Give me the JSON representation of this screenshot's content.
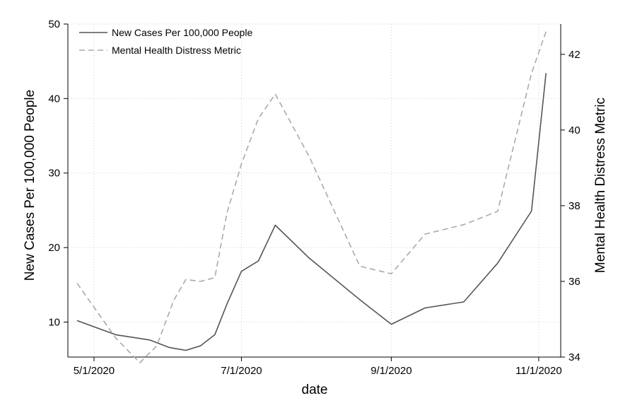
{
  "chart_data": {
    "type": "line",
    "xlabel": "date",
    "ylabel_left": "New Cases Per 100,000 People",
    "ylabel_right": "Mental Health Distress Metric",
    "x_ticks": [
      "5/1/2020",
      "7/1/2020",
      "9/1/2020",
      "11/1/2020"
    ],
    "xlim": [
      "2020-04-24",
      "2020-11-06"
    ],
    "ylim_left": [
      5.3,
      50
    ],
    "yticks_left": [
      10,
      20,
      30,
      40,
      50
    ],
    "ylim_right": [
      34,
      42.8
    ],
    "yticks_right": [
      34,
      36,
      38,
      40,
      42
    ],
    "grid": "dotted",
    "legend_position": "top-left",
    "series": [
      {
        "name": "New Cases Per 100,000 People",
        "axis": "left",
        "style": "solid",
        "color": "#555555",
        "x": [
          "2020-04-24",
          "2020-05-10",
          "2020-05-24",
          "2020-06-01",
          "2020-06-08",
          "2020-06-14",
          "2020-06-20",
          "2020-06-25",
          "2020-07-01",
          "2020-07-08",
          "2020-07-15",
          "2020-07-29",
          "2020-08-19",
          "2020-09-01",
          "2020-09-15",
          "2020-10-01",
          "2020-10-15",
          "2020-10-29",
          "2020-11-04"
        ],
        "y": [
          10.2,
          8.3,
          7.6,
          6.6,
          6.2,
          6.8,
          8.3,
          12.4,
          16.8,
          18.2,
          23.0,
          18.6,
          13.0,
          9.7,
          11.9,
          12.7,
          17.9,
          24.9,
          43.4
        ]
      },
      {
        "name": "Mental Health Distress Metric",
        "axis": "right",
        "style": "dashed",
        "color": "#aaaaaa",
        "x": [
          "2020-04-24",
          "2020-05-10",
          "2020-05-20",
          "2020-05-27",
          "2020-06-03",
          "2020-06-08",
          "2020-06-14",
          "2020-06-20",
          "2020-06-25",
          "2020-07-01",
          "2020-07-08",
          "2020-07-15",
          "2020-07-29",
          "2020-08-19",
          "2020-09-01",
          "2020-09-15",
          "2020-10-01",
          "2020-10-15",
          "2020-10-29",
          "2020-11-04"
        ],
        "y": [
          35.95,
          34.5,
          33.85,
          34.3,
          35.5,
          36.05,
          36.0,
          36.1,
          37.8,
          39.1,
          40.3,
          40.95,
          39.3,
          36.4,
          36.2,
          37.25,
          37.5,
          37.85,
          41.5,
          42.6
        ]
      }
    ]
  }
}
